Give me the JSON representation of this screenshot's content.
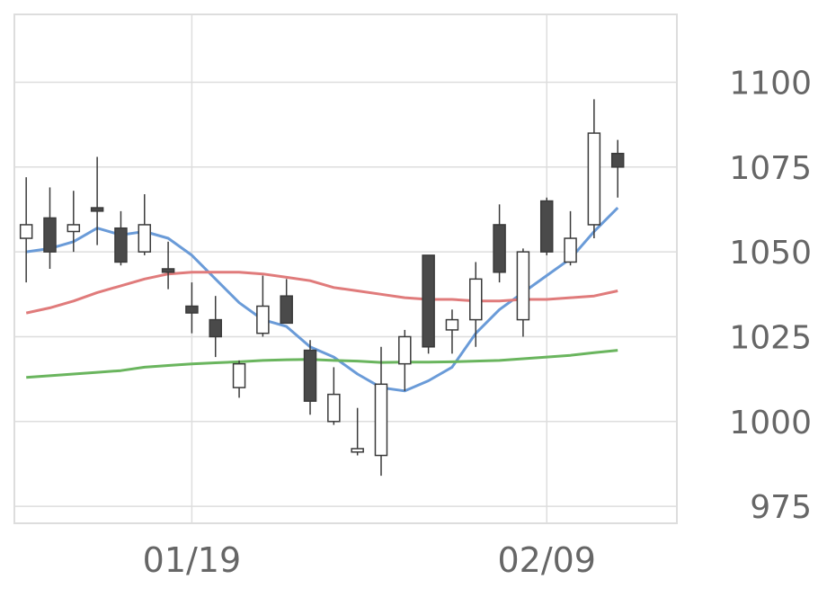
{
  "chart_data": {
    "type": "candlestick",
    "x_ticks": [
      {
        "index": 7,
        "label": "01/19"
      },
      {
        "index": 22,
        "label": "02/09"
      }
    ],
    "y_ticks": [
      975,
      1000,
      1025,
      1050,
      1075,
      1100
    ],
    "ylim": [
      970,
      1120
    ],
    "xlim": [
      -0.5,
      27.5
    ],
    "grid": true,
    "candles": [
      {
        "open": 1054,
        "high": 1072,
        "low": 1041,
        "close": 1058
      },
      {
        "open": 1060,
        "high": 1069,
        "low": 1045,
        "close": 1050
      },
      {
        "open": 1056,
        "high": 1068,
        "low": 1050,
        "close": 1058
      },
      {
        "open": 1063,
        "high": 1078,
        "low": 1052,
        "close": 1062
      },
      {
        "open": 1057,
        "high": 1062,
        "low": 1046,
        "close": 1047
      },
      {
        "open": 1050,
        "high": 1067,
        "low": 1049,
        "close": 1058
      },
      {
        "open": 1045,
        "high": 1053,
        "low": 1039,
        "close": 1044
      },
      {
        "open": 1034,
        "high": 1041,
        "low": 1026,
        "close": 1032
      },
      {
        "open": 1030,
        "high": 1037,
        "low": 1019,
        "close": 1025
      },
      {
        "open": 1010,
        "high": 1018,
        "low": 1007,
        "close": 1017
      },
      {
        "open": 1026,
        "high": 1043,
        "low": 1025,
        "close": 1034
      },
      {
        "open": 1037,
        "high": 1042,
        "low": 1029,
        "close": 1029
      },
      {
        "open": 1021,
        "high": 1024,
        "low": 1002,
        "close": 1006
      },
      {
        "open": 1000,
        "high": 1016,
        "low": 999,
        "close": 1008
      },
      {
        "open": 991,
        "high": 1004,
        "low": 990,
        "close": 992
      },
      {
        "open": 990,
        "high": 1022,
        "low": 984,
        "close": 1011
      },
      {
        "open": 1017,
        "high": 1027,
        "low": 1009,
        "close": 1025
      },
      {
        "open": 1049,
        "high": 1049,
        "low": 1020,
        "close": 1022
      },
      {
        "open": 1027,
        "high": 1033,
        "low": 1020,
        "close": 1030
      },
      {
        "open": 1030,
        "high": 1047,
        "low": 1022,
        "close": 1042
      },
      {
        "open": 1058,
        "high": 1064,
        "low": 1041,
        "close": 1044
      },
      {
        "open": 1030,
        "high": 1051,
        "low": 1025,
        "close": 1050
      },
      {
        "open": 1065,
        "high": 1066,
        "low": 1049,
        "close": 1050
      },
      {
        "open": 1047,
        "high": 1062,
        "low": 1046,
        "close": 1054
      },
      {
        "open": 1058,
        "high": 1095,
        "low": 1054,
        "close": 1085
      },
      {
        "open": 1079,
        "high": 1083,
        "low": 1066,
        "close": 1075
      }
    ],
    "series": [
      {
        "color": "#6a9bd8",
        "values": [
          1050,
          1051,
          1053,
          1057,
          1055,
          1056,
          1054,
          1049,
          1042,
          1035,
          1030,
          1028,
          1022,
          1019,
          1014,
          1010,
          1009,
          1012,
          1016,
          1026,
          1033,
          1038,
          1043,
          1048,
          1056,
          1063
        ]
      },
      {
        "color": "#e07b7b",
        "values": [
          1032,
          1033.5,
          1035.5,
          1038,
          1040,
          1042,
          1043.5,
          1044,
          1044,
          1044,
          1043.5,
          1042.5,
          1041.5,
          1039.5,
          1038.5,
          1037.5,
          1036.5,
          1036,
          1036,
          1035.5,
          1035.5,
          1036,
          1036,
          1036.5,
          1037,
          1038.5
        ]
      },
      {
        "color": "#6ab55e",
        "values": [
          1013,
          1013.5,
          1014,
          1014.5,
          1015,
          1016,
          1016.5,
          1017,
          1017.3,
          1017.6,
          1018,
          1018.2,
          1018.3,
          1018,
          1017.8,
          1017.4,
          1017.5,
          1017.5,
          1017.6,
          1017.8,
          1018,
          1018.5,
          1019,
          1019.5,
          1020.3,
          1021
        ]
      }
    ],
    "colors": {
      "bear_fill": "#4a4a4a",
      "bull_fill": "#ffffff",
      "candle_stroke": "#3a3a3a",
      "grid": "#dddddd",
      "label": "#666666"
    }
  }
}
